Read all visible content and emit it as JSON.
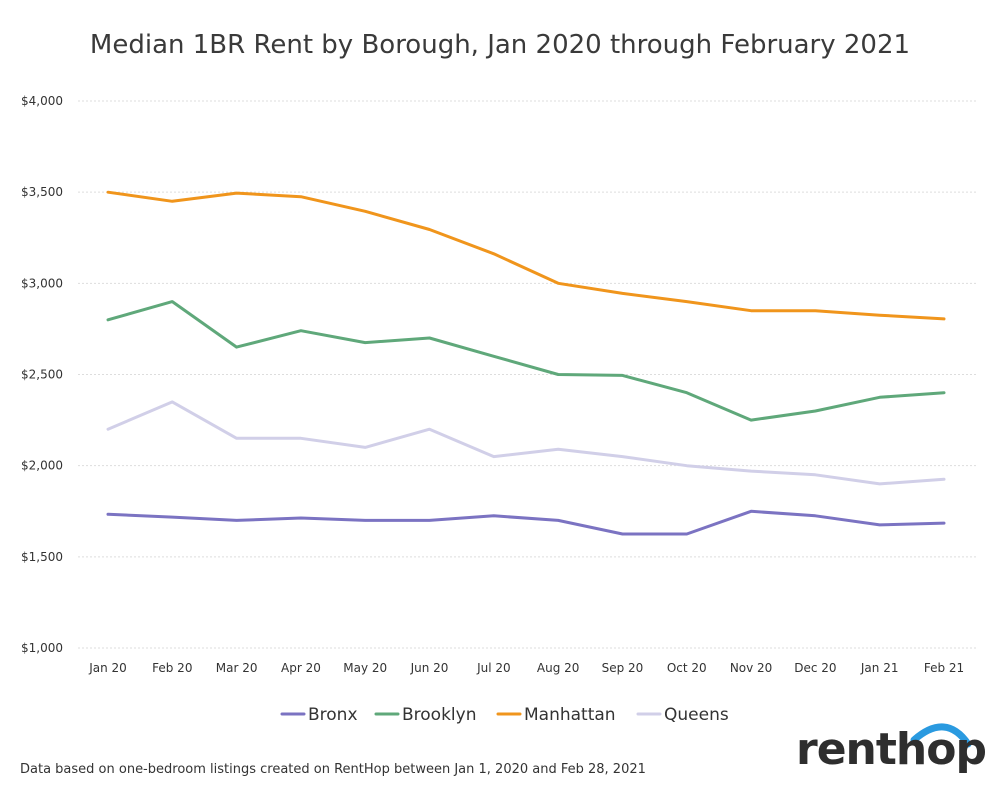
{
  "chart_data": {
    "type": "line",
    "title": "Median 1BR Rent by Borough, Jan 2020 through February 2021",
    "xlabel": "",
    "ylabel": "",
    "categories": [
      "Jan 20",
      "Feb 20",
      "Mar 20",
      "Apr 20",
      "May 20",
      "Jun 20",
      "Jul 20",
      "Aug 20",
      "Sep 20",
      "Oct 20",
      "Nov 20",
      "Dec 20",
      "Jan 21",
      "Feb 21"
    ],
    "ylim": [
      1000,
      4000
    ],
    "yticks": [
      1000,
      1500,
      2000,
      2500,
      3000,
      3500,
      4000
    ],
    "ytick_labels": [
      "$1,000",
      "$1,500",
      "$2,000",
      "$2,500",
      "$3,000",
      "$3,500",
      "$4,000"
    ],
    "grid": true,
    "legend_position": "bottom",
    "series": [
      {
        "name": "Bronx",
        "color": "#7b73c2",
        "values": [
          1733,
          1718,
          1700,
          1713,
          1700,
          1700,
          1725,
          1700,
          1625,
          1625,
          1750,
          1725,
          1675,
          1685
        ]
      },
      {
        "name": "Brooklyn",
        "color": "#5fa87a",
        "values": [
          2800,
          2900,
          2650,
          2740,
          2675,
          2700,
          2600,
          2500,
          2495,
          2400,
          2250,
          2300,
          2375,
          2400
        ]
      },
      {
        "name": "Manhattan",
        "color": "#f0951c",
        "values": [
          3500,
          3450,
          3495,
          3475,
          3395,
          3295,
          3162,
          3000,
          2945,
          2900,
          2850,
          2850,
          2825,
          2805
        ]
      },
      {
        "name": "Queens",
        "color": "#d1cfe8",
        "values": [
          2200,
          2350,
          2150,
          2150,
          2100,
          2200,
          2050,
          2090,
          2050,
          2000,
          1970,
          1950,
          1900,
          1925
        ]
      }
    ]
  },
  "footnote": "Data based on one-bedroom listings created on RentHop between Jan 1, 2020 and Feb 28, 2021",
  "logo": {
    "text": "renthop",
    "accent_color": "#2a9ae0"
  }
}
